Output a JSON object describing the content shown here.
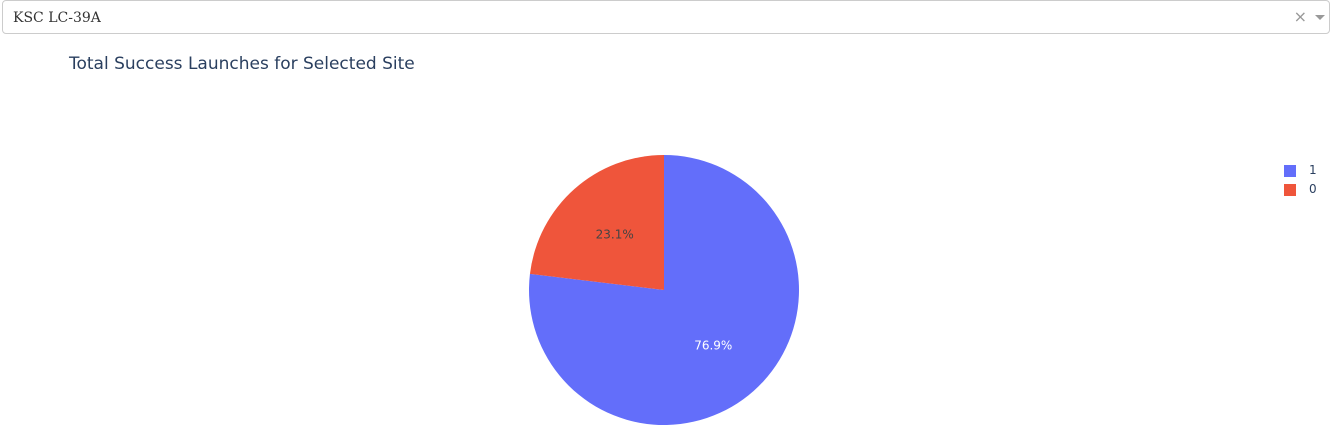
{
  "dropdown": {
    "selected": "KSC LC-39A",
    "clear_icon": "×",
    "arrow_icon": "chevron-down-icon"
  },
  "chart_data": {
    "type": "pie",
    "title": "Total Success Launches for Selected Site",
    "slices": [
      {
        "label": "1",
        "value": 76.9,
        "display": "76.9%",
        "color": "#636efa",
        "text_color": "#ffffff"
      },
      {
        "label": "0",
        "value": 23.1,
        "display": "23.1%",
        "color": "#ef553b",
        "text_color": "#444444"
      }
    ],
    "legend": {
      "placement": "top-right",
      "entries": [
        "1",
        "0"
      ]
    }
  }
}
